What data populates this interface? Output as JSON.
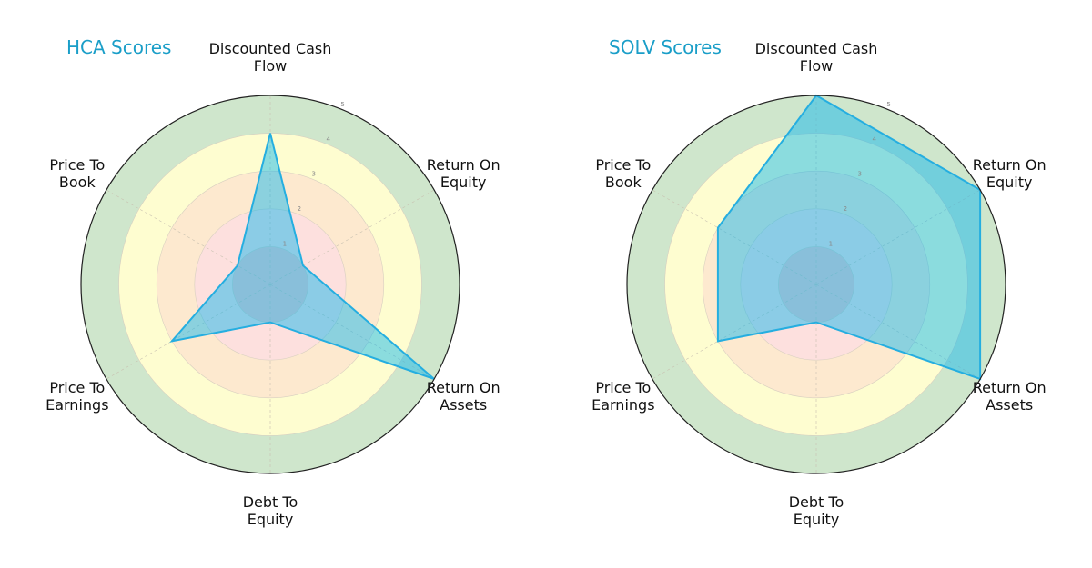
{
  "chart_data": [
    {
      "type": "radar",
      "title": "HCA Scores",
      "categories": [
        "Discounted Cash\nFlow",
        "Return On\nEquity",
        "Return On\nAssets",
        "Debt To\nEquity",
        "Price To\nEarnings",
        "Price To\nBook"
      ],
      "series": [
        {
          "name": "HCA",
          "values": [
            4,
            1,
            5,
            1,
            3,
            1
          ]
        }
      ],
      "radial_ticks": [
        "1",
        "2",
        "3",
        "4",
        "5"
      ],
      "rlim": [
        0,
        5
      ],
      "grid": true,
      "legend": "none"
    },
    {
      "type": "radar",
      "title": "SOLV Scores",
      "categories": [
        "Discounted Cash\nFlow",
        "Return On\nEquity",
        "Return On\nAssets",
        "Debt To\nEquity",
        "Price To\nEarnings",
        "Price To\nBook"
      ],
      "series": [
        {
          "name": "SOLV",
          "values": [
            5,
            5,
            5,
            1,
            3,
            3
          ]
        }
      ],
      "radial_ticks": [
        "1",
        "2",
        "3",
        "4",
        "5"
      ],
      "rlim": [
        0,
        5
      ],
      "grid": true,
      "legend": "none"
    }
  ],
  "colors": {
    "title": "#1a9ec8",
    "fill": "#00b4ef",
    "stroke": "#25aee0",
    "rings": [
      "#f9c9c9",
      "#fde0de",
      "#fde9cf",
      "#fefdd0",
      "#cfe6cc"
    ],
    "outline": "#222222"
  },
  "panels": {
    "left": {
      "title": "HCA Scores"
    },
    "right": {
      "title": "SOLV Scores"
    }
  }
}
